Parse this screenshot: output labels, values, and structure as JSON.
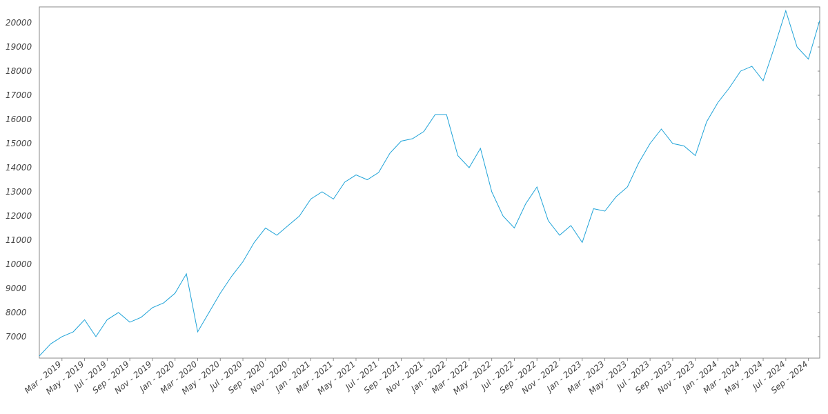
{
  "chart_data": {
    "type": "line",
    "x": [
      "2019-01",
      "2019-02",
      "2019-03",
      "2019-04",
      "2019-05",
      "2019-06",
      "2019-07",
      "2019-08",
      "2019-09",
      "2019-10",
      "2019-11",
      "2019-12",
      "2020-01",
      "2020-02",
      "2020-03",
      "2020-04",
      "2020-05",
      "2020-06",
      "2020-07",
      "2020-08",
      "2020-09",
      "2020-10",
      "2020-11",
      "2020-12",
      "2021-01",
      "2021-02",
      "2021-03",
      "2021-04",
      "2021-05",
      "2021-06",
      "2021-07",
      "2021-08",
      "2021-09",
      "2021-10",
      "2021-11",
      "2021-12",
      "2022-01",
      "2022-02",
      "2022-03",
      "2022-04",
      "2022-05",
      "2022-06",
      "2022-07",
      "2022-08",
      "2022-09",
      "2022-10",
      "2022-11",
      "2022-12",
      "2023-01",
      "2023-02",
      "2023-03",
      "2023-04",
      "2023-05",
      "2023-06",
      "2023-07",
      "2023-08",
      "2023-09",
      "2023-10",
      "2023-11",
      "2023-12",
      "2024-01",
      "2024-02",
      "2024-03",
      "2024-04",
      "2024-05",
      "2024-06",
      "2024-07",
      "2024-08",
      "2024-09",
      "2024-10"
    ],
    "series": [
      {
        "color": "#1fa3d8",
        "values": [
          6200,
          6700,
          7000,
          7200,
          7700,
          7000,
          7700,
          8000,
          7600,
          7800,
          8200,
          8400,
          8800,
          9600,
          7200,
          8000,
          8800,
          9500,
          10100,
          10900,
          11500,
          11200,
          11600,
          12000,
          12700,
          13000,
          12700,
          13400,
          13700,
          13500,
          13800,
          14600,
          15100,
          15200,
          15500,
          16200,
          16200,
          14500,
          14000,
          14800,
          13000,
          12000,
          11500,
          12500,
          13200,
          11800,
          11200,
          11600,
          10900,
          12300,
          12200,
          12800,
          13200,
          14200,
          15000,
          15600,
          15000,
          14900,
          14500,
          15900,
          16700,
          17300,
          18000,
          18200,
          17600,
          19000,
          20500,
          19000,
          18500,
          20100
        ]
      }
    ],
    "xlim": [
      "2019-01",
      "2024-10"
    ],
    "xticks": [
      {
        "value": "2019-03",
        "label": "Mar - 2019"
      },
      {
        "value": "2019-05",
        "label": "May - 2019"
      },
      {
        "value": "2019-07",
        "label": "Jul - 2019"
      },
      {
        "value": "2019-09",
        "label": "Sep - 2019"
      },
      {
        "value": "2019-11",
        "label": "Nov - 2019"
      },
      {
        "value": "2020-01",
        "label": "Jan - 2020"
      },
      {
        "value": "2020-03",
        "label": "Mar - 2020"
      },
      {
        "value": "2020-05",
        "label": "May - 2020"
      },
      {
        "value": "2020-07",
        "label": "Jul - 2020"
      },
      {
        "value": "2020-09",
        "label": "Sep - 2020"
      },
      {
        "value": "2020-11",
        "label": "Nov - 2020"
      },
      {
        "value": "2021-01",
        "label": "Jan - 2021"
      },
      {
        "value": "2021-03",
        "label": "Mar - 2021"
      },
      {
        "value": "2021-05",
        "label": "May - 2021"
      },
      {
        "value": "2021-07",
        "label": "Jul - 2021"
      },
      {
        "value": "2021-09",
        "label": "Sep - 2021"
      },
      {
        "value": "2021-11",
        "label": "Nov - 2021"
      },
      {
        "value": "2022-01",
        "label": "Jan - 2022"
      },
      {
        "value": "2022-03",
        "label": "Mar - 2022"
      },
      {
        "value": "2022-05",
        "label": "May - 2022"
      },
      {
        "value": "2022-07",
        "label": "Jul - 2022"
      },
      {
        "value": "2022-09",
        "label": "Sep - 2022"
      },
      {
        "value": "2022-11",
        "label": "Nov - 2022"
      },
      {
        "value": "2023-01",
        "label": "Jan - 2023"
      },
      {
        "value": "2023-03",
        "label": "Mar - 2023"
      },
      {
        "value": "2023-05",
        "label": "May - 2023"
      },
      {
        "value": "2023-07",
        "label": "Jul - 2023"
      },
      {
        "value": "2023-09",
        "label": "Sep - 2023"
      },
      {
        "value": "2023-11",
        "label": "Nov - 2023"
      },
      {
        "value": "2024-01",
        "label": "Jan - 2024"
      },
      {
        "value": "2024-03",
        "label": "Mar - 2024"
      },
      {
        "value": "2024-05",
        "label": "May - 2024"
      },
      {
        "value": "2024-07",
        "label": "Jul - 2024"
      },
      {
        "value": "2024-09",
        "label": "Sep - 2024"
      }
    ],
    "ylim": [
      6110,
      20660
    ],
    "yticks": [
      7000,
      8000,
      9000,
      10000,
      11000,
      12000,
      13000,
      14000,
      15000,
      16000,
      17000,
      18000,
      19000,
      20000
    ],
    "grid": false
  }
}
